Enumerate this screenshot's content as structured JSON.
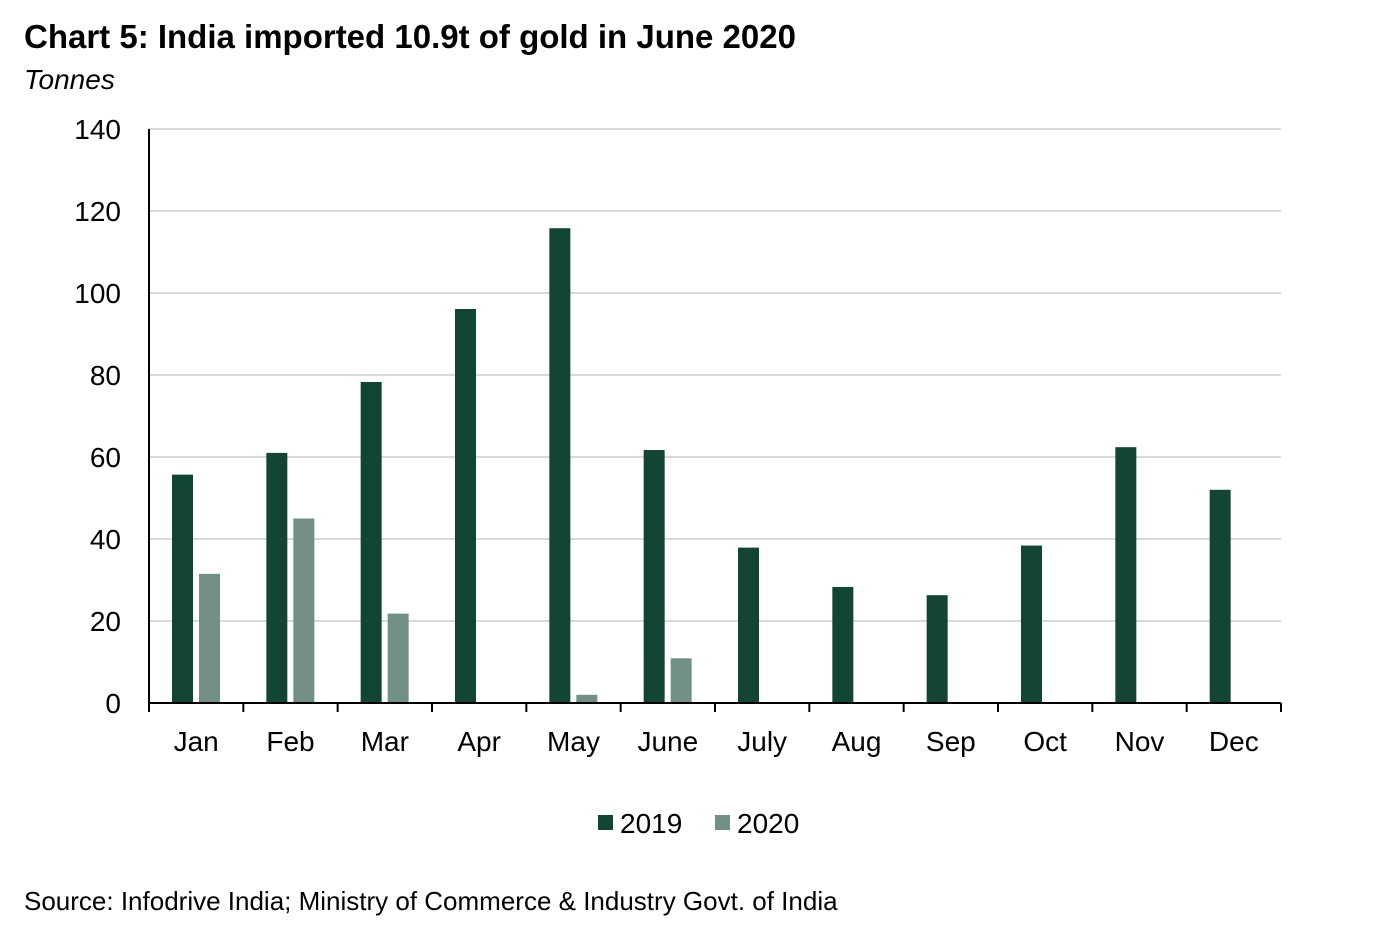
{
  "chart_data": {
    "type": "bar",
    "title": "Chart 5: India imported 10.9t of gold in June 2020",
    "subtitle": "Tonnes",
    "source": "Source: Infodrive India; Ministry of Commerce &  Industry Govt. of India",
    "categories": [
      "Jan",
      "Feb",
      "Mar",
      "Apr",
      "May",
      "June",
      "July",
      "Aug",
      "Sep",
      "Oct",
      "Nov",
      "Dec"
    ],
    "series": [
      {
        "name": "2019",
        "color": "#124534",
        "values": [
          55.7,
          61.0,
          78.3,
          96.1,
          115.8,
          61.7,
          37.9,
          28.3,
          26.3,
          38.4,
          62.4,
          52.0
        ]
      },
      {
        "name": "2020",
        "color": "#739085",
        "values": [
          31.5,
          45.0,
          21.8,
          null,
          2.0,
          10.9,
          null,
          null,
          null,
          null,
          null,
          null
        ]
      }
    ],
    "ylim": [
      0,
      140
    ],
    "yticks": [
      "0",
      "20",
      "40",
      "60",
      "80",
      "100",
      "120",
      "140"
    ],
    "grid": true,
    "legend_position": "bottom"
  }
}
